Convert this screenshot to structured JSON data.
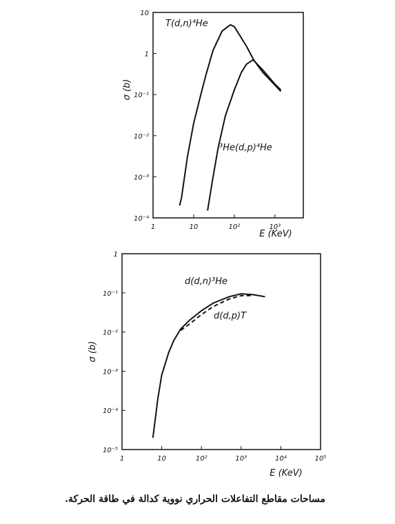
{
  "chart_data": [
    {
      "type": "line",
      "xlabel": "E (KeV)",
      "ylabel": "σ (b)",
      "xscale": "log",
      "yscale": "log",
      "xlim": [
        1,
        5000
      ],
      "ylim": [
        0.0001,
        10
      ],
      "xticks": [
        1,
        10,
        {
          "value": 100,
          "label": "10²"
        },
        {
          "value": 1000,
          "label": "10³"
        }
      ],
      "yticks": [
        {
          "value": 0.0001,
          "label": "10⁻⁴"
        },
        {
          "value": 0.001,
          "label": "10⁻³"
        },
        {
          "value": 0.01,
          "label": "10⁻²"
        },
        {
          "value": 0.1,
          "label": "10⁻¹"
        },
        1,
        10
      ],
      "series": [
        {
          "name": "T(d,n)⁴He",
          "color": "#111111",
          "dashed": false,
          "x": [
            4.5,
            5,
            7,
            10,
            15,
            20,
            30,
            50,
            80,
            100,
            200,
            300,
            500,
            1000,
            1400
          ],
          "values": [
            0.0002,
            0.0003,
            0.003,
            0.02,
            0.1,
            0.3,
            1.2,
            3.5,
            5,
            4.5,
            1.5,
            0.7,
            0.35,
            0.17,
            0.12
          ]
        },
        {
          "name": "³He(d,p)⁴He",
          "color": "#111111",
          "dashed": false,
          "x": [
            22,
            30,
            40,
            60,
            100,
            150,
            200,
            290,
            500,
            1000,
            1400
          ],
          "values": [
            0.00015,
            0.001,
            0.005,
            0.03,
            0.13,
            0.35,
            0.55,
            0.7,
            0.4,
            0.18,
            0.13
          ]
        }
      ]
    },
    {
      "type": "line",
      "xlabel": "E (KeV)",
      "ylabel": "σ (b)",
      "xscale": "log",
      "yscale": "log",
      "xlim": [
        1,
        100000
      ],
      "ylim": [
        1e-05,
        1
      ],
      "xticks": [
        1,
        10,
        {
          "value": 100,
          "label": "10²"
        },
        {
          "value": 1000,
          "label": "10³"
        },
        {
          "value": 10000,
          "label": "10⁴"
        },
        {
          "value": 100000,
          "label": "10⁵"
        }
      ],
      "yticks": [
        {
          "value": 1e-05,
          "label": "10⁻⁵"
        },
        {
          "value": 0.0001,
          "label": "10⁻⁴"
        },
        {
          "value": 0.001,
          "label": "10⁻³"
        },
        {
          "value": 0.01,
          "label": "10⁻²"
        },
        {
          "value": 0.1,
          "label": "10⁻¹"
        },
        1
      ],
      "series": [
        {
          "name": "d(d,n)³He",
          "color": "#111111",
          "dashed": false,
          "x": [
            6,
            8,
            10,
            15,
            20,
            30,
            50,
            100,
            200,
            500,
            1000,
            2000,
            4000
          ],
          "values": [
            2e-05,
            0.0002,
            0.0008,
            0.003,
            0.006,
            0.012,
            0.02,
            0.035,
            0.055,
            0.08,
            0.095,
            0.09,
            0.08
          ]
        },
        {
          "name": "d(d,p)T",
          "color": "#111111",
          "dashed": true,
          "x": [
            30,
            50,
            100,
            200,
            500,
            1000,
            2000
          ],
          "values": [
            0.011,
            0.016,
            0.028,
            0.045,
            0.07,
            0.085,
            0.085
          ]
        }
      ]
    }
  ],
  "caption": "مساحات مقاطع التفاعلات الحراري نووية كدالة في طاقة الحركة."
}
